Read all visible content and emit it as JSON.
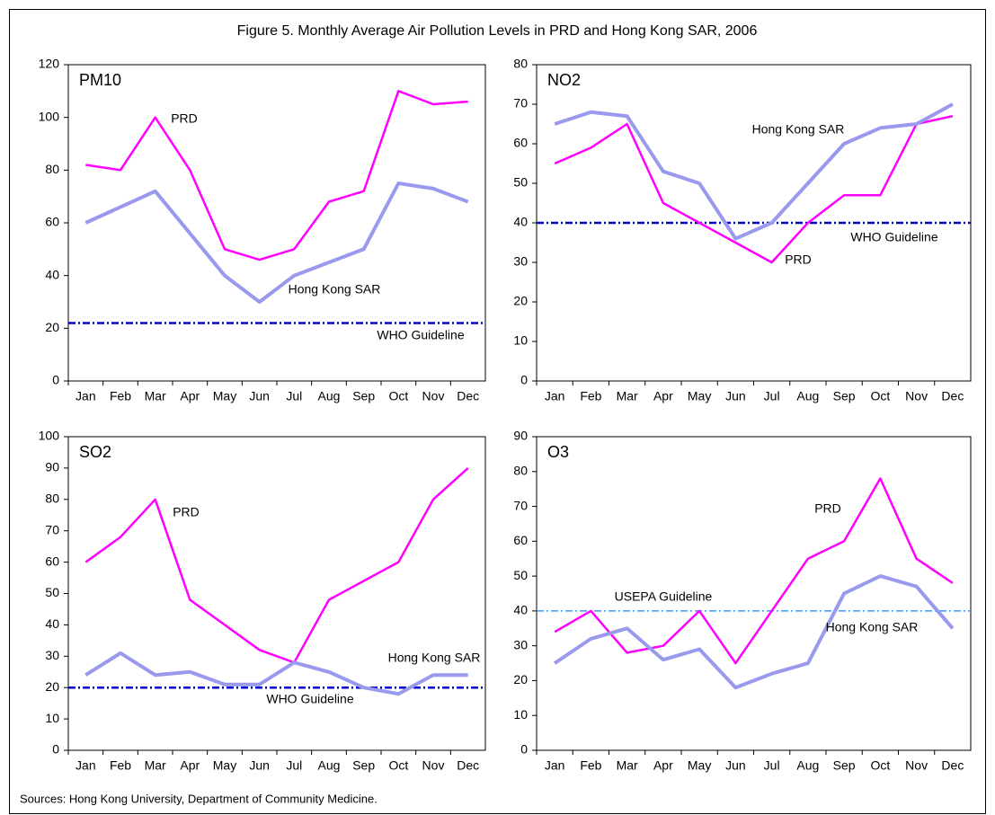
{
  "title": "Figure 5. Monthly Average Air Pollution Levels in PRD and Hong Kong SAR, 2006",
  "source": "Sources: Hong Kong University, Department of Community Medicine.",
  "chart_data": [
    {
      "type": "line",
      "title": "PM10",
      "categories": [
        "Jan",
        "Feb",
        "Mar",
        "Apr",
        "May",
        "Jun",
        "Jul",
        "Aug",
        "Sep",
        "Oct",
        "Nov",
        "Dec"
      ],
      "series": [
        {
          "name": "PRD",
          "color": "#ff00ff",
          "values": [
            82,
            80,
            100,
            80,
            50,
            46,
            50,
            68,
            72,
            110,
            105,
            106
          ]
        },
        {
          "name": "Hong Kong SAR",
          "color": "#9999ee",
          "values": [
            60,
            66,
            72,
            56,
            40,
            30,
            40,
            45,
            50,
            75,
            73,
            68
          ]
        }
      ],
      "reference_line": {
        "label": "WHO Guideline",
        "value": 22,
        "color": "#0000cc"
      },
      "ylim": [
        0,
        120
      ],
      "yticks": [
        0,
        20,
        40,
        60,
        80,
        100,
        120
      ]
    },
    {
      "type": "line",
      "title": "NO2",
      "categories": [
        "Jan",
        "Feb",
        "Mar",
        "Apr",
        "May",
        "Jun",
        "Jul",
        "Aug",
        "Sep",
        "Oct",
        "Nov",
        "Dec"
      ],
      "series": [
        {
          "name": "PRD",
          "color": "#ff00ff",
          "values": [
            55,
            59,
            65,
            45,
            40,
            35,
            30,
            40,
            47,
            47,
            65,
            67
          ]
        },
        {
          "name": "Hong Kong SAR",
          "color": "#9999ee",
          "values": [
            65,
            68,
            67,
            53,
            50,
            36,
            40,
            50,
            60,
            64,
            65,
            70
          ]
        }
      ],
      "reference_line": {
        "label": "WHO Guideline",
        "value": 40,
        "color": "#0000cc"
      },
      "ylim": [
        0,
        80
      ],
      "yticks": [
        0,
        10,
        20,
        30,
        40,
        50,
        60,
        70,
        80
      ]
    },
    {
      "type": "line",
      "title": "SO2",
      "categories": [
        "Jan",
        "Feb",
        "Mar",
        "Apr",
        "May",
        "Jun",
        "Jul",
        "Aug",
        "Sep",
        "Oct",
        "Nov",
        "Dec"
      ],
      "series": [
        {
          "name": "PRD",
          "color": "#ff00ff",
          "values": [
            60,
            68,
            80,
            48,
            40,
            32,
            28,
            48,
            54,
            60,
            80,
            90
          ]
        },
        {
          "name": "Hong Kong SAR",
          "color": "#9999ee",
          "values": [
            24,
            31,
            24,
            25,
            21,
            21,
            28,
            25,
            20,
            18,
            24,
            24
          ]
        }
      ],
      "reference_line": {
        "label": "WHO Guideline",
        "value": 20,
        "color": "#0000cc"
      },
      "ylim": [
        0,
        100
      ],
      "yticks": [
        0,
        10,
        20,
        30,
        40,
        50,
        60,
        70,
        80,
        90,
        100
      ]
    },
    {
      "type": "line",
      "title": "O3",
      "categories": [
        "Jan",
        "Feb",
        "Mar",
        "Apr",
        "May",
        "Jun",
        "Jul",
        "Aug",
        "Sep",
        "Oct",
        "Nov",
        "Dec"
      ],
      "series": [
        {
          "name": "PRD",
          "color": "#ff00ff",
          "values": [
            34,
            40,
            28,
            30,
            40,
            25,
            40,
            55,
            60,
            78,
            55,
            48
          ]
        },
        {
          "name": "Hong Kong SAR",
          "color": "#9999ee",
          "values": [
            25,
            32,
            35,
            26,
            29,
            18,
            22,
            25,
            45,
            50,
            47,
            35
          ]
        }
      ],
      "reference_line": {
        "label": "USEPA Guideline",
        "value": 40,
        "color": "#3399ff"
      },
      "ylim": [
        0,
        90
      ],
      "yticks": [
        0,
        10,
        20,
        30,
        40,
        50,
        60,
        70,
        80,
        90
      ]
    }
  ]
}
